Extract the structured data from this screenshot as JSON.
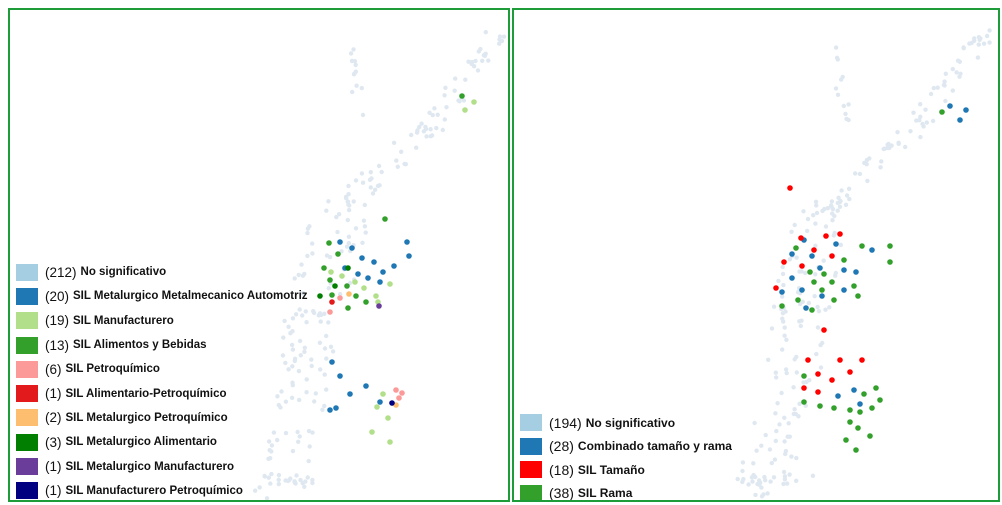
{
  "left_map": {
    "legend": [
      {
        "count": "(212)",
        "label": "No significativo",
        "color": "#a6cee3"
      },
      {
        "count": "(20)",
        "label": "SIL Metalurgico Metalmecanico Automotriz",
        "color": "#1f78b4"
      },
      {
        "count": "(19)",
        "label": "SIL Manufacturero",
        "color": "#b2df8a"
      },
      {
        "count": "(13)",
        "label": "SIL Alimentos y Bebidas",
        "color": "#33a02c"
      },
      {
        "count": "(6)",
        "label": "SIL Petroquímico",
        "color": "#fb9a99"
      },
      {
        "count": "(1)",
        "label": "SIL Alimentario-Petroquímico",
        "color": "#e31a1c"
      },
      {
        "count": "(2)",
        "label": "SIL Metalurgico Petroquímico",
        "color": "#fdbf6f"
      },
      {
        "count": "(3)",
        "label": "SIL Metalurgico Alimentario",
        "color": "#007f00"
      },
      {
        "count": "(1)",
        "label": "SIL Metalurgico Manufacturero",
        "color": "#6a3d9a"
      },
      {
        "count": "(1)",
        "label": "SIL Manufacturero Petroquímico",
        "color": "#000080"
      }
    ]
  },
  "right_map": {
    "legend": [
      {
        "count": "(194)",
        "label": "No significativo",
        "color": "#a6cee3"
      },
      {
        "count": "(28)",
        "label": "Combinado tamaño y rama",
        "color": "#1f78b4"
      },
      {
        "count": "(18)",
        "label": "SIL Tamaño",
        "color": "#ff0000"
      },
      {
        "count": "(38)",
        "label": "SIL Rama",
        "color": "#33a02c"
      }
    ]
  },
  "colors": {
    "frame": "#1f9c3a",
    "background_points": "#dfe8f0"
  }
}
